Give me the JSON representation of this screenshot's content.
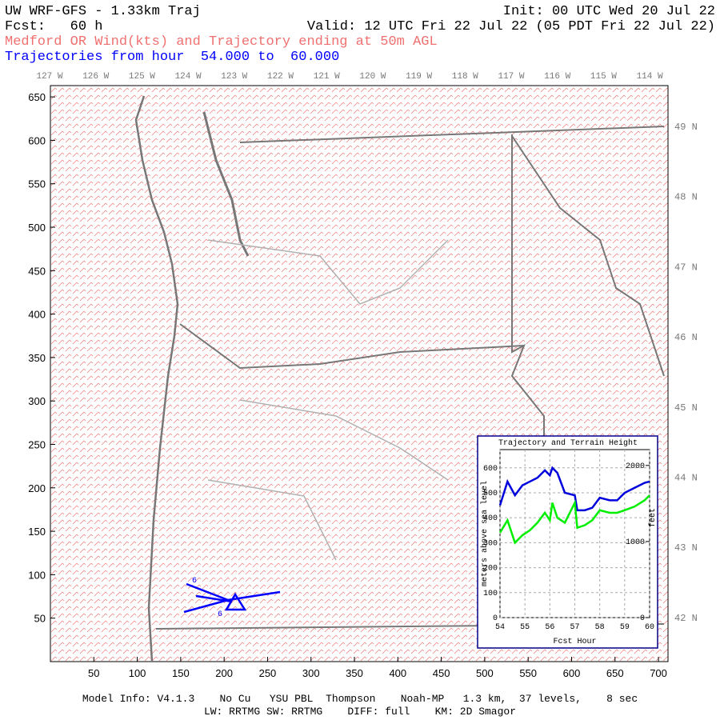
{
  "header": {
    "title": "UW WRF-GFS - 1.33km Traj",
    "init": "Init: 00 UTC Wed 20 Jul 22",
    "forecast": "Fcst:   60 h",
    "valid": "Valid: 12 UTC Fri 22 Jul 22 (05 PDT Fri 22 Jul 22)",
    "subtitle": "Medford OR Wind(kts) and Trajectory ending at 50m AGL",
    "trajectory_range": "Trajectories from hour  54.000 to  60.000"
  },
  "map": {
    "xlim": [
      0,
      711
    ],
    "ylim": [
      0,
      663
    ],
    "xticks": [
      50,
      100,
      150,
      200,
      250,
      300,
      350,
      400,
      450,
      500,
      550,
      600,
      650,
      700
    ],
    "yticks": [
      50,
      100,
      150,
      200,
      250,
      300,
      350,
      400,
      450,
      500,
      550,
      600,
      650
    ],
    "longitudes": [
      "127 W",
      "126 W",
      "125 W",
      "124 W",
      "123 W",
      "122 W",
      "121 W",
      "120 W",
      "119 W",
      "118 W",
      "117 W",
      "116 W",
      "115 W",
      "114 W"
    ],
    "latitudes": [
      "49 N",
      "48 N",
      "47 N",
      "46 N",
      "45 N",
      "44 N",
      "43 N",
      "42 N"
    ],
    "trajectory_labels": [
      "6",
      "6"
    ]
  },
  "chart_data": {
    "type": "line",
    "title": "Trajectory and Terrain Height",
    "x_label": "Fcst Hour",
    "y_label": "meters above sea level",
    "y2_label": "feet",
    "x": [
      54,
      54.3,
      54.6,
      54.9,
      55.2,
      55.5,
      55.8,
      56,
      56.1,
      56.3,
      56.6,
      57,
      57.1,
      57.4,
      57.7,
      58,
      58.4,
      58.7,
      59,
      59.4,
      59.8,
      60
    ],
    "series": [
      {
        "color": "#0000dd",
        "values": [
          450,
          545,
          490,
          530,
          545,
          560,
          590,
          570,
          600,
          580,
          500,
          490,
          430,
          430,
          440,
          480,
          470,
          470,
          500,
          520,
          540,
          545
        ]
      },
      {
        "color": "#00ee00",
        "values": [
          340,
          390,
          300,
          330,
          350,
          380,
          420,
          390,
          460,
          400,
          380,
          460,
          360,
          370,
          390,
          430,
          420,
          420,
          430,
          445,
          470,
          490
        ]
      }
    ],
    "xlim": [
      54,
      60
    ],
    "xticks": [
      54,
      55,
      56,
      57,
      58,
      59,
      60
    ],
    "ylim": [
      0,
      673
    ],
    "yticks": [
      0,
      100,
      200,
      300,
      400,
      500,
      600
    ],
    "y2lim": [
      0,
      2208
    ],
    "y2ticks": [
      0,
      1000,
      2000
    ],
    "grid": true
  },
  "footer": {
    "line1": "Model Info: V4.1.3    No Cu   YSU PBL  Thompson    Noah-MP   1.3 km,  37 levels,    8 sec",
    "line2": "LW: RRTMG SW: RRTMG    DIFF: full    KM: 2D Smagor"
  }
}
